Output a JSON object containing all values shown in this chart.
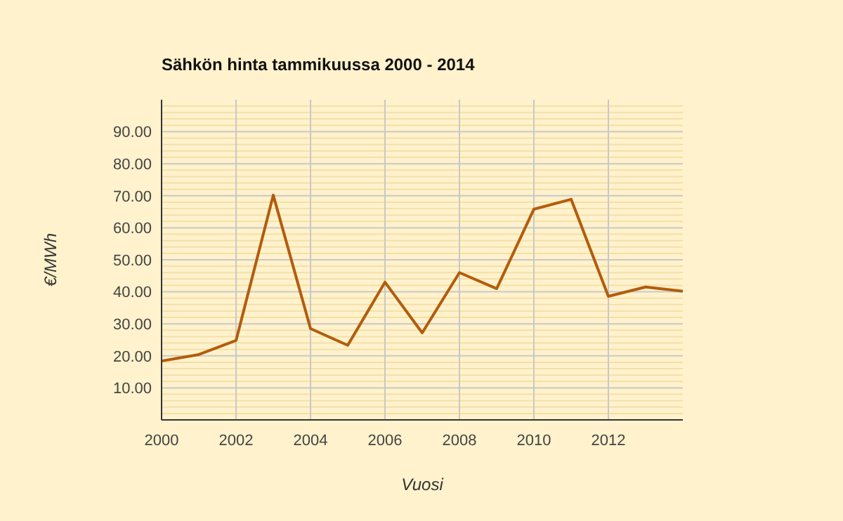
{
  "chart_data": {
    "type": "line",
    "title": "Sähkön hinta tammikuussa 2000 - 2014",
    "xlabel": "Vuosi",
    "ylabel": "€/MWh",
    "x": [
      2000,
      2001,
      2002,
      2003,
      2004,
      2005,
      2006,
      2007,
      2008,
      2009,
      2010,
      2011,
      2012,
      2013,
      2014
    ],
    "series": [
      {
        "color": "#b35c0c",
        "values": [
          18.4,
          20.4,
          24.8,
          70.2,
          28.5,
          23.3,
          43,
          27.2,
          46,
          41,
          65.8,
          68.9,
          38.6,
          41.5,
          40.2
        ]
      }
    ],
    "xlim": [
      2000,
      2014
    ],
    "xticks": [
      2000,
      2002,
      2004,
      2006,
      2008,
      2010,
      2012
    ],
    "ylim": [
      0,
      100
    ],
    "yticks": [
      {
        "value": 2,
        "label": null
      },
      {
        "value": 4,
        "label": null
      },
      {
        "value": 6,
        "label": null
      },
      {
        "value": 8,
        "label": null
      },
      {
        "value": 10,
        "label": "10.00"
      },
      {
        "value": 12,
        "label": null
      },
      {
        "value": 14,
        "label": null
      },
      {
        "value": 16,
        "label": null
      },
      {
        "value": 18,
        "label": null
      },
      {
        "value": 20,
        "label": "20.00"
      },
      {
        "value": 22,
        "label": null
      },
      {
        "value": 24,
        "label": null
      },
      {
        "value": 26,
        "label": null
      },
      {
        "value": 28,
        "label": null
      },
      {
        "value": 30,
        "label": "30.00"
      },
      {
        "value": 32,
        "label": null
      },
      {
        "value": 34,
        "label": null
      },
      {
        "value": 36,
        "label": null
      },
      {
        "value": 38,
        "label": null
      },
      {
        "value": 40,
        "label": "40.00"
      },
      {
        "value": 42,
        "label": null
      },
      {
        "value": 44,
        "label": null
      },
      {
        "value": 46,
        "label": null
      },
      {
        "value": 48,
        "label": null
      },
      {
        "value": 50,
        "label": "50.00"
      },
      {
        "value": 52,
        "label": null
      },
      {
        "value": 54,
        "label": null
      },
      {
        "value": 56,
        "label": null
      },
      {
        "value": 58,
        "label": null
      },
      {
        "value": 60,
        "label": "60.00"
      },
      {
        "value": 62,
        "label": null
      },
      {
        "value": 64,
        "label": null
      },
      {
        "value": 66,
        "label": null
      },
      {
        "value": 68,
        "label": null
      },
      {
        "value": 70,
        "label": "70.00"
      },
      {
        "value": 72,
        "label": null
      },
      {
        "value": 74,
        "label": null
      },
      {
        "value": 76,
        "label": null
      },
      {
        "value": 78,
        "label": null
      },
      {
        "value": 80,
        "label": "80.00"
      },
      {
        "value": 82,
        "label": null
      },
      {
        "value": 84,
        "label": null
      },
      {
        "value": 86,
        "label": null
      },
      {
        "value": 88,
        "label": null
      },
      {
        "value": 90,
        "label": "90.00"
      },
      {
        "value": 92,
        "label": null
      },
      {
        "value": 94,
        "label": null
      },
      {
        "value": 96,
        "label": null
      },
      {
        "value": 98,
        "label": null
      }
    ],
    "grid": true,
    "marker": "none",
    "line_style": "solid"
  }
}
